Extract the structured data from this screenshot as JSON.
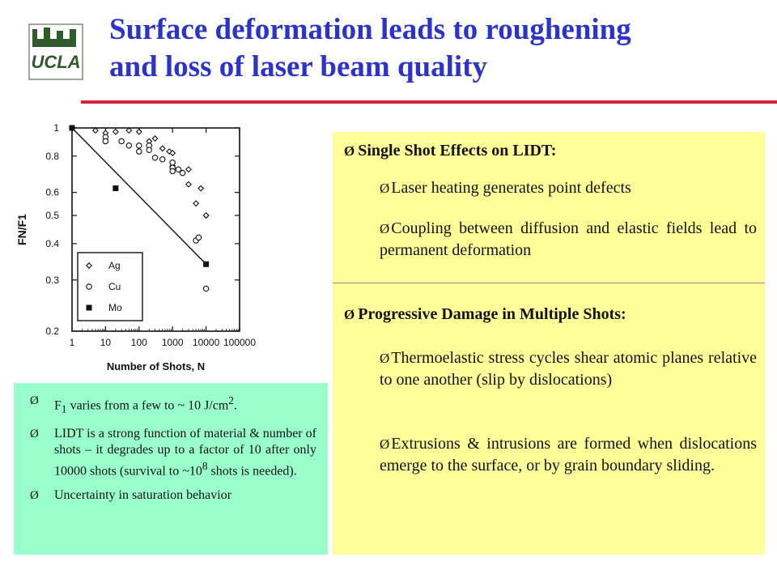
{
  "slide": {
    "title_line1": "Surface deformation leads to roughening",
    "title_line2": "and loss of laser beam quality",
    "accent_color": "#2b33c8",
    "rule_color": "#d8213b",
    "logo_text": "UCLA"
  },
  "green_box": {
    "background": "#99ffcc",
    "bullet_glyph": "Ø",
    "items": [
      {
        "pre": "F",
        "sub": "1",
        "mid": " varies from a few to ~ 10 J/cm",
        "sup": "2",
        "post": "."
      },
      {
        "pre": "LIDT is a strong function of material & number of shots – it degrades up to a factor of 10 after only 10000 shots (survival to ~10",
        "sup": "8",
        "post": " shots is needed)."
      },
      {
        "pre": "Uncertainty in saturation behavior"
      }
    ]
  },
  "yellow_box": {
    "background": "#ffff99",
    "bullet_glyph": "Ø",
    "section1": {
      "heading": "Single Shot Effects on LIDT:",
      "items": [
        "Laser heating generates point defects",
        "Coupling between diffusion and elastic fields lead to permanent deformation"
      ]
    },
    "section2": {
      "heading": "Progressive Damage in Multiple Shots:",
      "items": [
        "Thermoelastic stress cycles shear atomic planes relative to one another (slip by dislocations)",
        "Extrusions & intrusions are formed when dislocations emerge to the surface, or by grain boundary sliding."
      ]
    }
  },
  "chart_data": {
    "type": "scatter",
    "xlabel": "Number of Shots, N",
    "ylabel": "FN/F1",
    "x_scale": "log",
    "y_scale": "log",
    "xlim": [
      1,
      100000
    ],
    "ylim": [
      0.2,
      1
    ],
    "x_ticks": [
      1,
      10,
      100,
      1000,
      10000,
      100000
    ],
    "x_tick_labels": [
      "1",
      "10",
      "100",
      "1000",
      "10000",
      "100000"
    ],
    "y_ticks": [
      1,
      0.8,
      0.6,
      0.5,
      0.4,
      0.3,
      0.2
    ],
    "y_tick_labels": [
      "1",
      "0.8",
      "0.6",
      "0.5",
      "0.4",
      "0.3",
      "0.2"
    ],
    "legend_position": "bottom-left",
    "series": [
      {
        "name": "Ag",
        "marker": "diamond",
        "points": [
          [
            1,
            1.0
          ],
          [
            5,
            0.98
          ],
          [
            10,
            0.96
          ],
          [
            20,
            0.97
          ],
          [
            50,
            0.98
          ],
          [
            100,
            0.97
          ],
          [
            200,
            0.9
          ],
          [
            300,
            0.92
          ],
          [
            500,
            0.85
          ],
          [
            800,
            0.83
          ],
          [
            1000,
            0.82
          ],
          [
            1000,
            0.74
          ],
          [
            2000,
            0.7
          ],
          [
            3000,
            0.64
          ],
          [
            3000,
            0.72
          ],
          [
            5000,
            0.55
          ],
          [
            7000,
            0.62
          ],
          [
            10000,
            0.5
          ],
          [
            10000,
            0.5
          ]
        ]
      },
      {
        "name": "Cu",
        "marker": "circle",
        "points": [
          [
            10,
            0.93
          ],
          [
            10,
            0.9
          ],
          [
            30,
            0.9
          ],
          [
            50,
            0.87
          ],
          [
            100,
            0.87
          ],
          [
            100,
            0.83
          ],
          [
            200,
            0.87
          ],
          [
            200,
            0.84
          ],
          [
            300,
            0.79
          ],
          [
            500,
            0.78
          ],
          [
            1000,
            0.76
          ],
          [
            1000,
            0.73
          ],
          [
            1000,
            0.71
          ],
          [
            1500,
            0.72
          ],
          [
            2000,
            0.7
          ],
          [
            5000,
            0.41
          ],
          [
            6000,
            0.42
          ],
          [
            10000,
            0.28
          ]
        ]
      },
      {
        "name": "Mo",
        "marker": "square",
        "points": [
          [
            1,
            1.0
          ],
          [
            20,
            0.62
          ],
          [
            10000,
            0.34
          ]
        ]
      }
    ],
    "fit_line": {
      "from": [
        1,
        1.0
      ],
      "to": [
        10000,
        0.34
      ]
    }
  }
}
